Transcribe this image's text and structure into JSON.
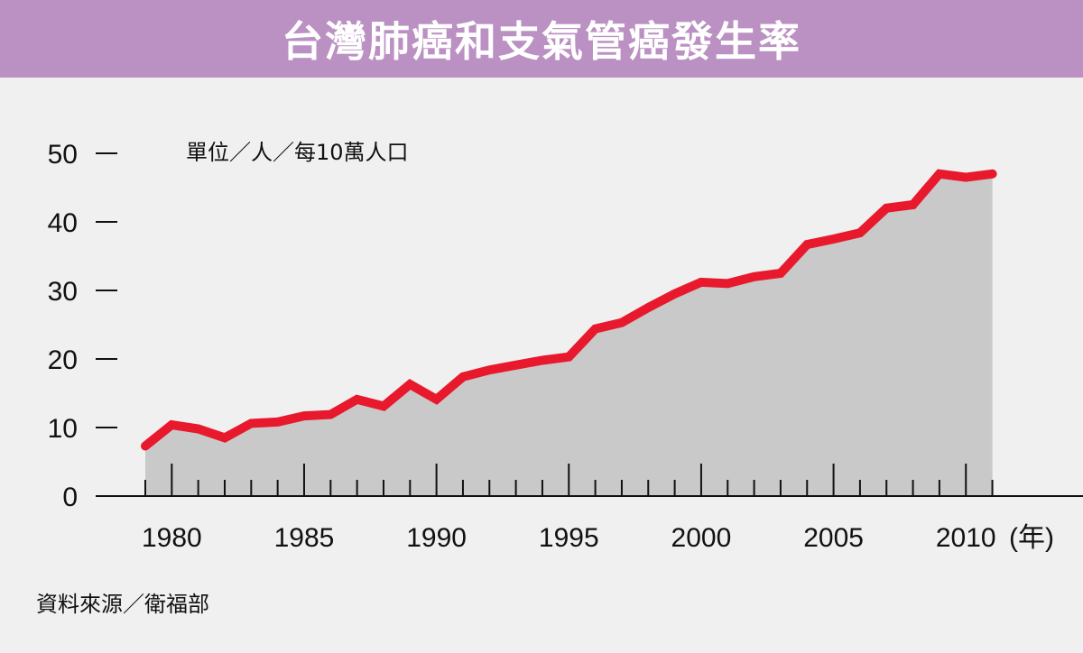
{
  "header": {
    "title": "台灣肺癌和支氣管癌發生率"
  },
  "source": "資料來源／衛福部",
  "colors": {
    "banner": "#bb90c3",
    "background": "#f0f0f0",
    "area_fill": "#c9c9c9",
    "line": "#e8192c",
    "axis": "#111111"
  },
  "chart_data": {
    "type": "area",
    "unit_label": "單位／人／每10萬人口",
    "x_unit": "(年)",
    "x_tick_labels": [
      "1980",
      "1985",
      "1990",
      "1995",
      "2000",
      "2005",
      "2010"
    ],
    "y_tick_labels": [
      "0",
      "10",
      "20",
      "30",
      "40",
      "50"
    ],
    "xlim": [
      1979,
      2011
    ],
    "ylim": [
      0,
      50
    ],
    "grid": false,
    "legend": "none",
    "series": [
      {
        "x": [
          1979,
          1980,
          1981,
          1982,
          1983,
          1984,
          1985,
          1986,
          1987,
          1988,
          1989,
          1990,
          1991,
          1992,
          1993,
          1994,
          1995,
          1996,
          1997,
          1998,
          1999,
          2000,
          2001,
          2002,
          2003,
          2004,
          2005,
          2006,
          2007,
          2008,
          2009,
          2010,
          2011
        ],
        "y": [
          7.3,
          10.4,
          9.8,
          8.5,
          10.6,
          10.8,
          11.7,
          11.9,
          14.1,
          13.1,
          16.3,
          14.1,
          17.4,
          18.4,
          19.1,
          19.8,
          20.3,
          24.4,
          25.3,
          27.5,
          29.5,
          31.2,
          31.0,
          32.0,
          32.5,
          36.7,
          37.5,
          38.4,
          42.0,
          42.5,
          47.0,
          46.5,
          47.0
        ]
      }
    ]
  }
}
